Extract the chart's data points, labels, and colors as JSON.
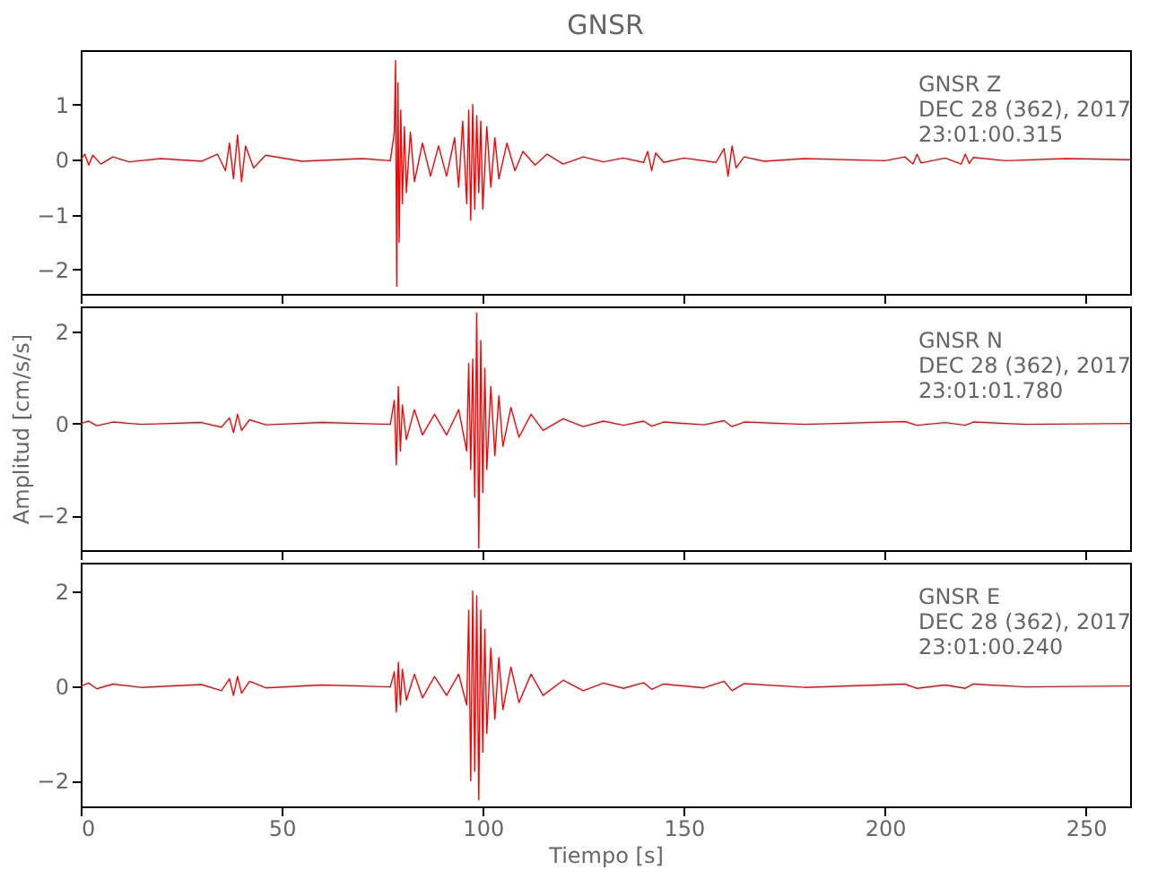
{
  "chart_data": [
    {
      "type": "line",
      "title": "GNSR",
      "annotations": [
        "GNSR  Z",
        "DEC 28 (362), 2017",
        "23:01:00.315"
      ],
      "xlim": [
        0,
        261
      ],
      "xticks": [
        0,
        50,
        100,
        150,
        200,
        250
      ],
      "ylim": [
        -2.44,
        1.99
      ],
      "yticks": [
        -2,
        -1,
        0,
        1
      ],
      "tick_labels": "y",
      "series": [
        {
          "color": "#ff0000",
          "x": [
            0,
            1,
            2,
            3,
            5,
            8,
            12,
            20,
            30,
            34,
            36,
            37,
            38,
            39,
            40,
            41,
            43,
            46,
            55,
            70,
            77,
            78,
            78.3,
            78.6,
            78.9,
            79.2,
            79.6,
            80,
            80.5,
            81,
            82,
            83,
            85,
            87,
            89,
            91,
            93,
            94,
            95,
            96,
            96.5,
            97,
            97.5,
            98,
            98.5,
            99,
            99.5,
            100,
            101,
            102,
            103,
            104,
            106,
            108,
            110,
            113,
            116,
            120,
            125,
            130,
            135,
            140,
            141,
            142,
            143,
            145,
            150,
            158,
            160,
            161,
            162,
            163,
            165,
            170,
            180,
            200,
            205,
            207,
            208,
            209,
            215,
            219,
            220,
            221,
            222,
            230,
            245,
            261
          ],
          "values": [
            0,
            0.1,
            -0.1,
            0.08,
            -0.08,
            0.05,
            -0.04,
            0.02,
            -0.03,
            0.1,
            -0.2,
            0.3,
            -0.35,
            0.45,
            -0.4,
            0.25,
            -0.15,
            0.08,
            -0.03,
            0.02,
            -0.02,
            0.5,
            1.8,
            -2.3,
            1.4,
            -1.5,
            0.9,
            -0.8,
            0.6,
            -0.6,
            0.5,
            -0.4,
            0.3,
            -0.3,
            0.25,
            -0.3,
            0.4,
            -0.5,
            0.7,
            -0.8,
            0.9,
            -1.1,
            1.0,
            -0.9,
            0.8,
            -0.6,
            0.7,
            -0.9,
            0.6,
            -0.5,
            0.4,
            -0.35,
            0.3,
            -0.2,
            0.15,
            -0.1,
            0.1,
            -0.08,
            0.05,
            -0.04,
            0.03,
            -0.05,
            0.15,
            -0.2,
            0.12,
            -0.05,
            0.03,
            -0.05,
            0.2,
            -0.3,
            0.25,
            -0.15,
            0.05,
            -0.03,
            0.02,
            -0.02,
            0.05,
            -0.08,
            0.1,
            -0.06,
            0.03,
            -0.08,
            0.1,
            -0.07,
            0.04,
            -0.02,
            0.02,
            0
          ]
        }
      ]
    },
    {
      "type": "line",
      "ylabel": "Amplitud [cm/s/s]",
      "annotations": [
        "GNSR  N",
        "DEC 28 (362), 2017",
        "23:01:01.780"
      ],
      "xlim": [
        0,
        261
      ],
      "xticks": [
        0,
        50,
        100,
        150,
        200,
        250
      ],
      "ylim": [
        -2.75,
        2.54
      ],
      "yticks": [
        -2,
        0,
        2
      ],
      "tick_labels": "y",
      "series": [
        {
          "color": "#ff0000",
          "x": [
            0,
            2,
            4,
            8,
            15,
            30,
            35,
            37,
            38,
            39,
            40,
            42,
            46,
            60,
            77,
            78,
            78.5,
            79,
            79.5,
            80,
            81,
            83,
            85,
            88,
            91,
            94,
            96,
            96.5,
            97,
            97.5,
            98,
            98.5,
            99,
            99.5,
            100,
            100.5,
            101,
            102,
            103,
            104,
            105,
            107,
            109,
            112,
            115,
            120,
            125,
            130,
            135,
            140,
            142,
            145,
            155,
            160,
            162,
            165,
            180,
            205,
            208,
            215,
            220,
            222,
            235,
            261
          ],
          "values": [
            0,
            0.05,
            -0.05,
            0.03,
            -0.02,
            0.02,
            -0.08,
            0.12,
            -0.2,
            0.2,
            -0.15,
            0.08,
            -0.03,
            0.02,
            -0.02,
            0.5,
            -0.9,
            0.8,
            -0.6,
            0.4,
            -0.35,
            0.3,
            -0.25,
            0.2,
            -0.25,
            0.3,
            -0.6,
            1.3,
            -1.0,
            1.4,
            -1.6,
            2.4,
            -2.7,
            1.8,
            -1.5,
            1.2,
            -1.0,
            0.8,
            -0.7,
            0.6,
            -0.5,
            0.35,
            -0.3,
            0.2,
            -0.15,
            0.1,
            -0.07,
            0.05,
            -0.04,
            0.05,
            -0.06,
            0.03,
            -0.03,
            0.06,
            -0.07,
            0.03,
            -0.02,
            0.04,
            -0.04,
            0.02,
            -0.04,
            0.03,
            -0.02,
            0
          ]
        }
      ]
    },
    {
      "type": "line",
      "xlabel": "Tiempo [s]",
      "annotations": [
        "GNSR  E",
        "DEC 28 (362), 2017",
        "23:01:00.240"
      ],
      "xlim": [
        0,
        261
      ],
      "xticks": [
        0,
        50,
        100,
        150,
        200,
        250
      ],
      "ylim": [
        -2.54,
        2.6
      ],
      "yticks": [
        -2,
        0,
        2
      ],
      "series": [
        {
          "color": "#ff0000",
          "x": [
            0,
            2,
            4,
            8,
            15,
            30,
            35,
            37,
            38,
            39,
            40,
            42,
            46,
            60,
            77,
            78,
            78.5,
            79,
            79.5,
            80,
            81,
            83,
            85,
            88,
            91,
            94,
            96,
            96.5,
            97,
            97.5,
            98,
            98.5,
            99,
            99.5,
            100,
            100.5,
            101,
            102,
            103,
            104,
            105,
            107,
            109,
            112,
            115,
            120,
            125,
            130,
            135,
            140,
            142,
            145,
            155,
            160,
            162,
            165,
            180,
            205,
            208,
            215,
            220,
            222,
            235,
            261
          ],
          "values": [
            0,
            0.06,
            -0.06,
            0.04,
            -0.03,
            0.03,
            -0.1,
            0.15,
            -0.2,
            0.2,
            -0.15,
            0.1,
            -0.04,
            0.02,
            -0.02,
            0.3,
            -0.55,
            0.5,
            -0.4,
            0.35,
            -0.3,
            0.25,
            -0.25,
            0.2,
            -0.2,
            0.25,
            -0.4,
            1.6,
            -2.0,
            2.0,
            -1.8,
            1.9,
            -2.4,
            1.6,
            -1.4,
            1.2,
            -1.0,
            0.8,
            -0.7,
            0.6,
            -0.5,
            0.4,
            -0.35,
            0.25,
            -0.2,
            0.12,
            -0.1,
            0.06,
            -0.05,
            0.07,
            -0.07,
            0.04,
            -0.04,
            0.1,
            -0.1,
            0.05,
            -0.03,
            0.04,
            -0.05,
            0.02,
            -0.05,
            0.04,
            -0.02,
            0
          ]
        }
      ]
    }
  ]
}
